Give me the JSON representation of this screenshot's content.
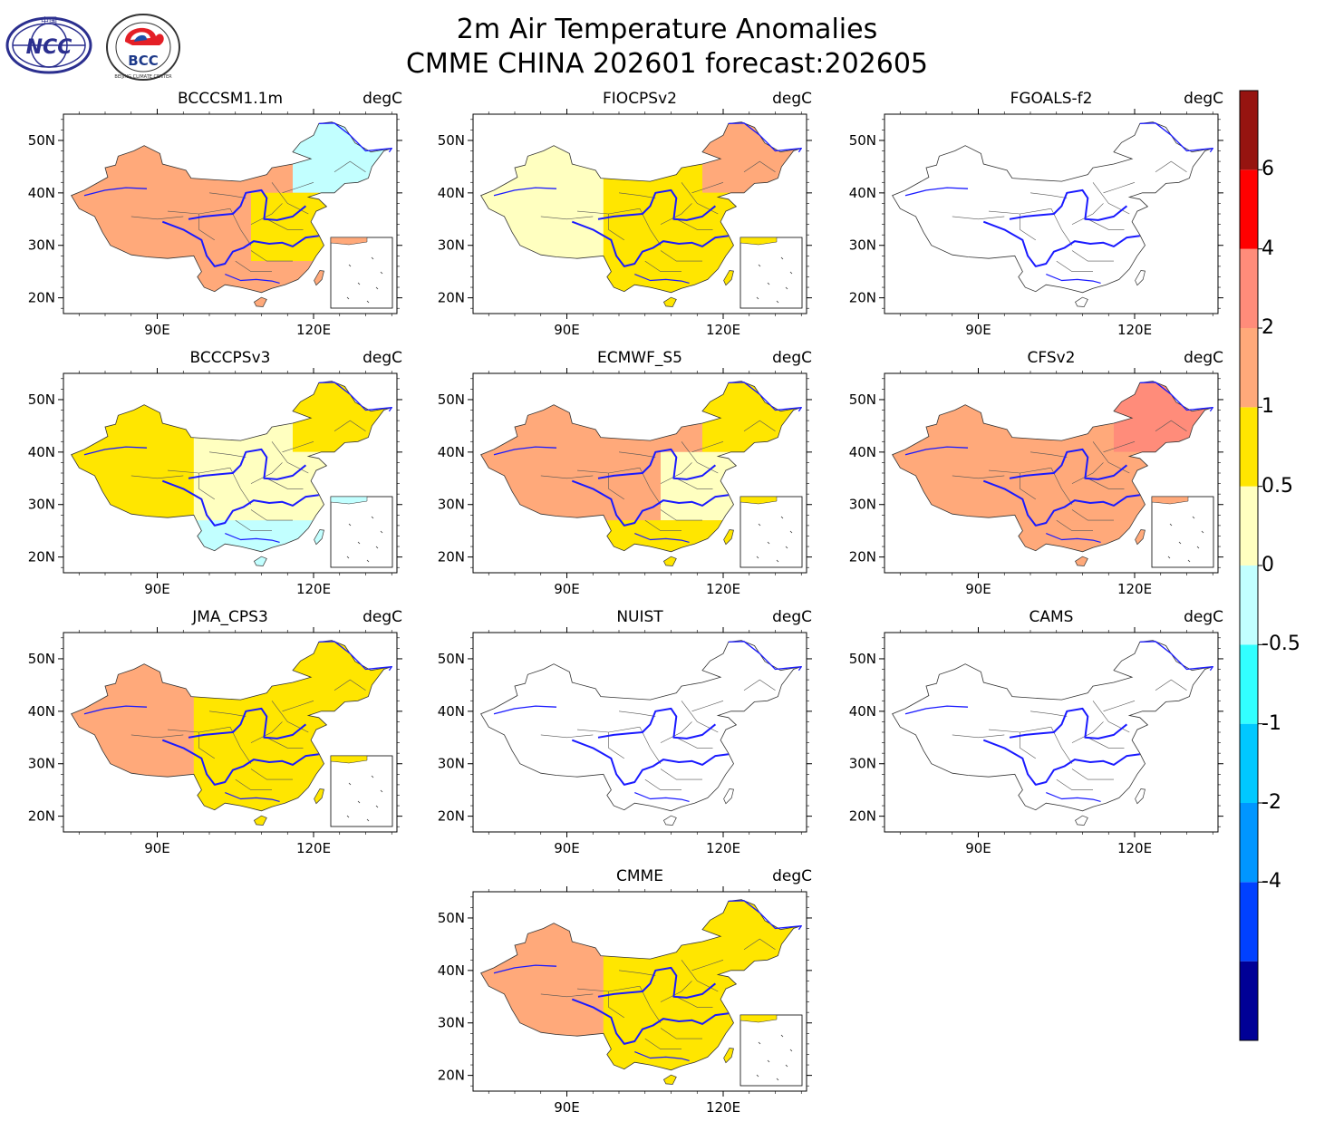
{
  "header": {
    "line1": "2m Air Temperature Anomalies",
    "line2": "CMME CHINA 202601 forecast:202605"
  },
  "logos": [
    {
      "name": "ncc-logo",
      "text": "NCC",
      "top_text": "中国"
    },
    {
      "name": "bcc-logo",
      "text": "BCC",
      "ring_text": "BEIJING CLIMATE CENTER"
    }
  ],
  "unit": "degC",
  "axes": {
    "lat_ticks": [
      "20N",
      "30N",
      "40N",
      "50N"
    ],
    "lon_ticks": [
      "90E",
      "120E"
    ],
    "lat_range": [
      17,
      55
    ],
    "lon_range": [
      72,
      136
    ]
  },
  "panels": [
    {
      "model": "BCCCSM1.1m",
      "colors": {
        "w": "#ffa97a",
        "c": "#ffa97a",
        "ne": "#c2ffff",
        "e": "#ffe600",
        "s": "#ffa97a"
      },
      "blank": false
    },
    {
      "model": "FIOCPSv2",
      "colors": {
        "w": "#ffffc0",
        "c": "#ffe600",
        "ne": "#ffa97a",
        "e": "#ffe600",
        "s": "#ffe600"
      },
      "blank": false
    },
    {
      "model": "FGOALS-f2",
      "colors": null,
      "blank": true
    },
    {
      "model": "BCCCPSv3",
      "colors": {
        "w": "#ffe600",
        "c": "#ffffc0",
        "ne": "#ffe600",
        "e": "#ffffc0",
        "s": "#c2ffff"
      },
      "blank": false
    },
    {
      "model": "ECMWF_S5",
      "colors": {
        "w": "#ffa97a",
        "c": "#ffa97a",
        "ne": "#ffe600",
        "e": "#ffffc0",
        "s": "#ffe600"
      },
      "blank": false
    },
    {
      "model": "CFSv2",
      "colors": {
        "w": "#ffa97a",
        "c": "#ffa97a",
        "ne": "#ff8c7a",
        "e": "#ffa97a",
        "s": "#ffa97a"
      },
      "blank": false
    },
    {
      "model": "JMA_CPS3",
      "colors": {
        "w": "#ffa97a",
        "c": "#ffe600",
        "ne": "#ffe600",
        "e": "#ffe600",
        "s": "#ffe600"
      },
      "blank": false
    },
    {
      "model": "NUIST",
      "colors": null,
      "blank": true
    },
    {
      "model": "CAMS",
      "colors": null,
      "blank": true
    },
    {
      "model": "CMME",
      "colors": {
        "w": "#ffa97a",
        "c": "#ffe600",
        "ne": "#ffe600",
        "e": "#ffe600",
        "s": "#ffe600"
      },
      "blank": false
    }
  ],
  "colorbar": {
    "colors": [
      "#000096",
      "#0041ff",
      "#0096ff",
      "#00c8ff",
      "#32ffff",
      "#c2ffff",
      "#ffffc0",
      "#ffe600",
      "#ffa97a",
      "#ff8c7a",
      "#ff0000",
      "#961410"
    ],
    "labels": [
      "-4",
      "-2",
      "-1",
      "-0.5",
      "0",
      "0.5",
      "1",
      "2",
      "4",
      "6"
    ]
  }
}
